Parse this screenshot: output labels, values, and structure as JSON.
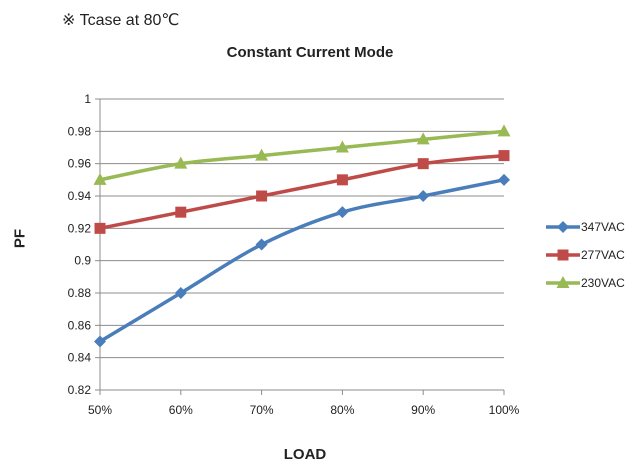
{
  "note": "※ Tcase at 80℃",
  "chart_data": {
    "type": "line",
    "title": "Constant Current Mode",
    "xlabel": "LOAD",
    "ylabel": "PF",
    "categories": [
      "50%",
      "60%",
      "70%",
      "80%",
      "90%",
      "100%"
    ],
    "ylim": [
      0.82,
      1.0
    ],
    "yticks": [
      "0.82",
      "0.84",
      "0.86",
      "0.88",
      "0.9",
      "0.92",
      "0.94",
      "0.96",
      "0.98",
      "1"
    ],
    "grid": true,
    "legend_position": "right",
    "series": [
      {
        "name": "347VAC",
        "values": [
          0.85,
          0.88,
          0.91,
          0.93,
          0.94,
          0.95
        ],
        "color": "#4a7ebb",
        "marker": "diamond"
      },
      {
        "name": "277VAC",
        "values": [
          0.92,
          0.93,
          0.94,
          0.95,
          0.96,
          0.965
        ],
        "color": "#be4b48",
        "marker": "square"
      },
      {
        "name": "230VAC",
        "values": [
          0.95,
          0.96,
          0.965,
          0.97,
          0.975,
          0.98
        ],
        "color": "#98b954",
        "marker": "triangle"
      }
    ]
  }
}
